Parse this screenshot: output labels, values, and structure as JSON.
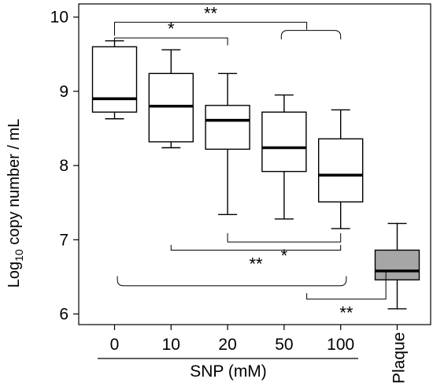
{
  "chart_data": {
    "type": "box",
    "ylabel_parts": {
      "prefix": "Log",
      "subscript": "10",
      "suffix": " copy number / mL"
    },
    "group_label": "SNP (mM)",
    "ylim": [
      5.9,
      10.2
    ],
    "yticks": [
      6,
      7,
      8,
      9,
      10
    ],
    "grid": false,
    "categories": [
      {
        "label": "0",
        "low": 8.63,
        "q1": 8.72,
        "median": 8.9,
        "q3": 9.6,
        "high": 9.68,
        "fill": "#ffffff"
      },
      {
        "label": "10",
        "low": 8.24,
        "q1": 8.32,
        "median": 8.8,
        "q3": 9.24,
        "high": 9.56,
        "fill": "#ffffff"
      },
      {
        "label": "20",
        "low": 7.34,
        "q1": 8.22,
        "median": 8.61,
        "q3": 8.81,
        "high": 9.24,
        "fill": "#ffffff"
      },
      {
        "label": "50",
        "low": 7.28,
        "q1": 7.92,
        "median": 8.24,
        "q3": 8.72,
        "high": 8.95,
        "fill": "#ffffff"
      },
      {
        "label": "100",
        "low": 7.15,
        "q1": 7.51,
        "median": 7.87,
        "q3": 8.36,
        "high": 8.75,
        "fill": "#ffffff"
      },
      {
        "label": "Plaque",
        "low": 6.07,
        "q1": 6.46,
        "median": 6.58,
        "q3": 6.86,
        "high": 7.22,
        "fill": "#a6a6a6"
      }
    ],
    "significance": [
      {
        "label": "*",
        "style": "bracket",
        "from": 0,
        "to": 2,
        "y": 9.72,
        "drop_left": 0.1,
        "drop_right": 0.1
      },
      {
        "label": "**",
        "style": "bracket",
        "from": 0,
        "to": 3.4,
        "y": 9.93,
        "drop_left": 0.18,
        "drop_right": 0.1
      },
      {
        "label": "",
        "style": "curly",
        "from": 2.95,
        "to": 4,
        "y": 9.82,
        "drop": 0.12
      },
      {
        "label": "*",
        "style": "bracket-up",
        "from": 2,
        "to": 4,
        "y": 6.97,
        "drop": 0.12
      },
      {
        "label": "**",
        "style": "bracket-up",
        "from": 1,
        "to": 4,
        "y": 6.86,
        "drop": 0.07
      },
      {
        "label": "",
        "style": "curly-up",
        "from": 0.05,
        "to": 4.1,
        "y": 6.38,
        "drop": 0.13
      },
      {
        "label": "**",
        "style": "bracket-up",
        "from": 3.4,
        "to": 4.8,
        "y": 6.2,
        "drop_left": 0.08,
        "drop_right": 0.37
      }
    ]
  }
}
